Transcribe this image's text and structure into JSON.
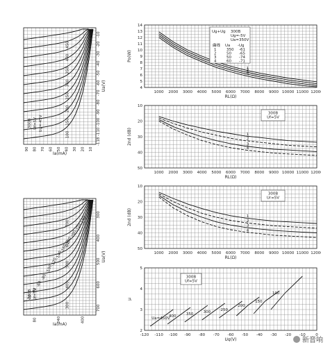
{
  "watermark": "新音响",
  "chart_data": [
    {
      "id": "top-left-plate",
      "type": "line",
      "rotated": true,
      "ylabel": "Ua(V)",
      "xlabel": "Ia(mA)",
      "xticks": [
        "90",
        "80",
        "70",
        "60",
        "50",
        "40",
        "30",
        "20",
        "10"
      ],
      "yticks": [
        "100",
        "150",
        "200",
        "250",
        "300",
        "350",
        "400",
        "450"
      ],
      "rticks": [
        "-10",
        "-20",
        "-30",
        "-40",
        "-50",
        "-60",
        "-70",
        "-80",
        "-90",
        "-100",
        "-110",
        "-118"
      ],
      "annotations": [
        "300B",
        "Uf=5V",
        "Ug=-45V"
      ],
      "curve_count": 12
    },
    {
      "id": "top-right-power",
      "type": "line",
      "ylabel": "Po(W)",
      "xlabel": "RL(Ω)",
      "xticks": [
        "1000",
        "2000",
        "3000",
        "4000",
        "5000",
        "6000",
        "7000",
        "8000",
        "9000",
        "10000",
        "11000",
        "12000"
      ],
      "yticks": [
        "4",
        "5",
        "6",
        "7",
        "8",
        "9",
        "10",
        "11",
        "12",
        "13",
        "14"
      ],
      "ylim": [
        4,
        14
      ],
      "xlim": [
        0,
        12000
      ],
      "legend": {
        "lines": [
          "300B",
          "Ug=-5V",
          "Ua=350V"
        ],
        "header": "Ug+Ug",
        "cols": [
          "曲线",
          "Ua",
          "-Ug"
        ],
        "rows": [
          [
            "1",
            "350",
            "-61"
          ],
          [
            "2",
            "50",
            "-65"
          ],
          [
            "3",
            "50",
            "-74"
          ],
          [
            "4",
            "60",
            "-71"
          ]
        ]
      },
      "series": [
        {
          "name": "1",
          "x": [
            1000,
            2000,
            3000,
            4000,
            5000,
            6000,
            7000,
            8000,
            9000,
            10000,
            11000,
            12000
          ],
          "y": [
            12.9,
            11.3,
            10.0,
            9.0,
            8.1,
            7.4,
            6.8,
            6.3,
            5.9,
            5.5,
            5.2,
            4.9
          ]
        },
        {
          "name": "2",
          "x": [
            1000,
            2000,
            3000,
            4000,
            5000,
            6000,
            7000,
            8000,
            9000,
            10000,
            11000,
            12000
          ],
          "y": [
            12.6,
            11.0,
            9.7,
            8.7,
            7.8,
            7.1,
            6.5,
            6.0,
            5.6,
            5.2,
            4.9,
            4.6
          ]
        },
        {
          "name": "3",
          "x": [
            1000,
            2000,
            3000,
            4000,
            5000,
            6000,
            7000,
            8000,
            9000,
            10000,
            11000,
            12000
          ],
          "y": [
            12.3,
            10.7,
            9.4,
            8.4,
            7.5,
            6.8,
            6.2,
            5.7,
            5.3,
            4.9,
            4.6,
            4.3
          ]
        },
        {
          "name": "4",
          "x": [
            1000,
            2000,
            3000,
            4000,
            5000,
            6000,
            7000,
            8000,
            9000,
            10000,
            11000,
            12000
          ],
          "y": [
            12.0,
            10.4,
            9.1,
            8.1,
            7.2,
            6.5,
            5.9,
            5.4,
            5.0,
            4.6,
            4.3,
            4.1
          ]
        }
      ]
    },
    {
      "id": "mid-right-2nd",
      "type": "line",
      "ylabel": "2nd (dB)",
      "xlabel": "RL(Ω)",
      "xticks": [
        "1000",
        "2000",
        "3000",
        "4000",
        "5000",
        "6000",
        "7000",
        "8000",
        "9000",
        "10000",
        "11000",
        "12000"
      ],
      "yticks": [
        "10",
        "20",
        "30",
        "40",
        "50"
      ],
      "ylim": [
        10,
        50
      ],
      "xlim": [
        0,
        12000
      ],
      "legend": {
        "lines": [
          "300B",
          "Uf=5V"
        ]
      },
      "series": [
        {
          "name": "1",
          "x": [
            1000,
            2000,
            3000,
            4000,
            5000,
            6000,
            7000,
            8000,
            9000,
            10000,
            11000,
            12000
          ],
          "y": [
            17,
            20,
            22.5,
            24.5,
            26.5,
            28,
            29.5,
            30.5,
            31.5,
            32.5,
            33,
            33.5
          ]
        },
        {
          "name": "2",
          "x": [
            1000,
            2000,
            3000,
            4000,
            5000,
            6000,
            7000,
            8000,
            9000,
            10000,
            11000,
            12000
          ],
          "y": [
            18,
            21.5,
            24.5,
            27,
            29,
            31,
            32.5,
            33.5,
            34.5,
            35.5,
            36,
            36.5
          ]
        },
        {
          "name": "3",
          "x": [
            1000,
            2000,
            3000,
            4000,
            5000,
            6000,
            7000,
            8000,
            9000,
            10000,
            11000,
            12000
          ],
          "y": [
            19,
            23.5,
            27,
            30,
            32.5,
            34.5,
            36,
            37,
            38,
            38.5,
            39,
            39.5
          ]
        },
        {
          "name": "4",
          "x": [
            1000,
            2000,
            3000,
            4000,
            5000,
            6000,
            7000,
            8000,
            9000,
            10000,
            11000,
            12000
          ],
          "y": [
            20,
            25,
            29,
            32.5,
            35,
            37,
            38.5,
            39.5,
            40.5,
            41,
            41.5,
            42
          ]
        }
      ]
    },
    {
      "id": "bottom-right-2nd",
      "type": "line",
      "ylabel": "2nd (dB)",
      "xlabel": "RL(Ω)",
      "xticks": [
        "1000",
        "2000",
        "3000",
        "4000",
        "5000",
        "6000",
        "7000",
        "8000",
        "9000",
        "10000",
        "11000",
        "12000"
      ],
      "yticks": [
        "10",
        "20",
        "30",
        "40",
        "50"
      ],
      "ylim": [
        10,
        50
      ],
      "xlim": [
        0,
        12000
      ],
      "legend": {
        "lines": [
          "300B",
          "Ur=5V"
        ]
      },
      "series": [
        {
          "name": "1",
          "x": [
            1000,
            2000,
            3000,
            4000,
            5000,
            6000,
            7000,
            8000,
            9000,
            10000,
            11000,
            12000
          ],
          "y": [
            14,
            18,
            21.5,
            24.5,
            27,
            29,
            30.5,
            31.5,
            32.5,
            33,
            33.5,
            34
          ]
        },
        {
          "name": "2",
          "x": [
            1000,
            2000,
            3000,
            4000,
            5000,
            6000,
            7000,
            8000,
            9000,
            10000,
            11000,
            12000
          ],
          "y": [
            15,
            20,
            24,
            27.5,
            30,
            32,
            33.5,
            34.5,
            35.5,
            36,
            36.5,
            37
          ]
        },
        {
          "name": "3",
          "x": [
            1000,
            2000,
            3000,
            4000,
            5000,
            6000,
            7000,
            8000,
            9000,
            10000,
            11000,
            12000
          ],
          "y": [
            16,
            22,
            26.5,
            30,
            33,
            35,
            36.5,
            37.5,
            38.5,
            39,
            39.5,
            40
          ]
        },
        {
          "name": "4",
          "x": [
            1000,
            2000,
            3000,
            4000,
            5000,
            6000,
            7000,
            8000,
            9000,
            10000,
            11000,
            12000
          ],
          "y": [
            17,
            24,
            29,
            33,
            36,
            38,
            39.5,
            40.5,
            41.5,
            42,
            42.5,
            43
          ]
        }
      ]
    },
    {
      "id": "bottom-left-plate",
      "type": "line",
      "rotated": true,
      "ylabel": "Ua(V)",
      "xlabel": "Ia(mA)",
      "xticks": [
        "80",
        "240",
        "400"
      ],
      "yticks": [
        "300",
        "400",
        "500",
        "600",
        "700"
      ],
      "annotations": [
        "300B",
        "Uf=5V"
      ],
      "curve_labels": [
        "-20",
        "-40",
        "-60",
        "-80",
        "-100",
        "-120",
        "-140",
        "-160",
        "-180",
        "-200",
        "-220",
        "-240"
      ],
      "curve_count": 13
    },
    {
      "id": "bottom-right-mu",
      "type": "line",
      "ylabel": "μ",
      "xlabel": "Ug(V)",
      "xticks": [
        "-120",
        "-110",
        "-100",
        "-90",
        "-80",
        "-70",
        "-60",
        "-50",
        "-40",
        "-30",
        "-20",
        "-10",
        "0"
      ],
      "yticks": [
        "2",
        "3",
        "4",
        "5"
      ],
      "ylim": [
        2,
        5
      ],
      "xlim": [
        -120,
        0
      ],
      "legend": {
        "lines": [
          "300B",
          "Uf=5V"
        ]
      },
      "curve_labels": [
        "Ua=450V",
        "400",
        "350",
        "300",
        "250",
        "200",
        "150",
        "100"
      ],
      "series": [
        {
          "name": "Ua=450V",
          "x": [
            -116,
            -108,
            -100
          ],
          "y": [
            2.2,
            2.6,
            3.0
          ]
        },
        {
          "name": "400",
          "x": [
            -104,
            -96,
            -88
          ],
          "y": [
            2.3,
            2.7,
            3.1
          ]
        },
        {
          "name": "350",
          "x": [
            -92,
            -84,
            -76
          ],
          "y": [
            2.4,
            2.8,
            3.2
          ]
        },
        {
          "name": "300",
          "x": [
            -80,
            -72,
            -64
          ],
          "y": [
            2.5,
            2.9,
            3.3
          ]
        },
        {
          "name": "250",
          "x": [
            -68,
            -60,
            -52
          ],
          "y": [
            2.6,
            3.0,
            3.4
          ]
        },
        {
          "name": "200",
          "x": [
            -56,
            -48,
            -40
          ],
          "y": [
            2.7,
            3.2,
            3.6
          ]
        },
        {
          "name": "150",
          "x": [
            -44,
            -36,
            -26
          ],
          "y": [
            2.8,
            3.4,
            3.9
          ]
        },
        {
          "name": "100",
          "x": [
            -32,
            -22,
            -10
          ],
          "y": [
            3.0,
            3.8,
            4.6
          ]
        }
      ]
    }
  ]
}
